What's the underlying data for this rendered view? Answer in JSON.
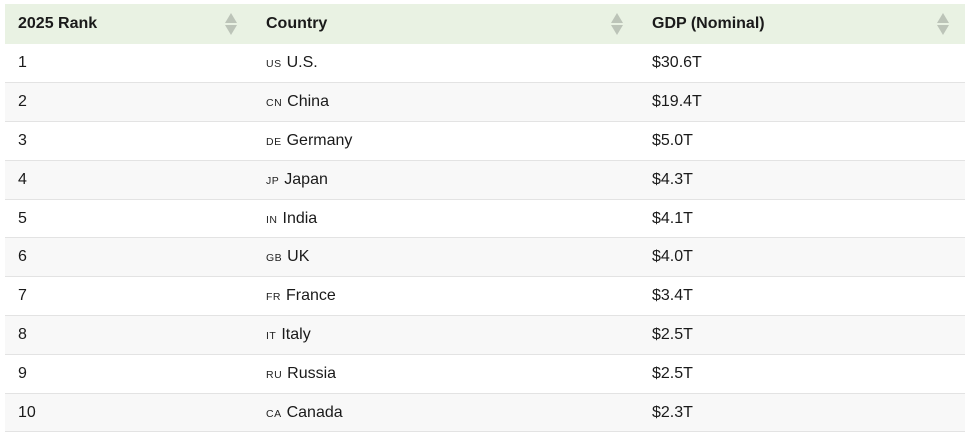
{
  "table": {
    "headers": {
      "rank": "2025 Rank",
      "country": "Country",
      "gdp": "GDP (Nominal)"
    },
    "rows": [
      {
        "rank": "1",
        "code": "US",
        "country": "U.S.",
        "gdp": "$30.6T"
      },
      {
        "rank": "2",
        "code": "CN",
        "country": "China",
        "gdp": "$19.4T"
      },
      {
        "rank": "3",
        "code": "DE",
        "country": "Germany",
        "gdp": "$5.0T"
      },
      {
        "rank": "4",
        "code": "JP",
        "country": "Japan",
        "gdp": "$4.3T"
      },
      {
        "rank": "5",
        "code": "IN",
        "country": "India",
        "gdp": "$4.1T"
      },
      {
        "rank": "6",
        "code": "GB",
        "country": "UK",
        "gdp": "$4.0T"
      },
      {
        "rank": "7",
        "code": "FR",
        "country": "France",
        "gdp": "$3.4T"
      },
      {
        "rank": "8",
        "code": "IT",
        "country": "Italy",
        "gdp": "$2.5T"
      },
      {
        "rank": "9",
        "code": "RU",
        "country": "Russia",
        "gdp": "$2.5T"
      },
      {
        "rank": "10",
        "code": "CA",
        "country": "Canada",
        "gdp": "$2.3T"
      }
    ]
  },
  "colors": {
    "header_bg": "#e9f2e3",
    "row_alt_bg": "#f8f8f8",
    "sort_icon": "#bcc4b8"
  },
  "icons": {
    "sort": "sort-icon"
  }
}
